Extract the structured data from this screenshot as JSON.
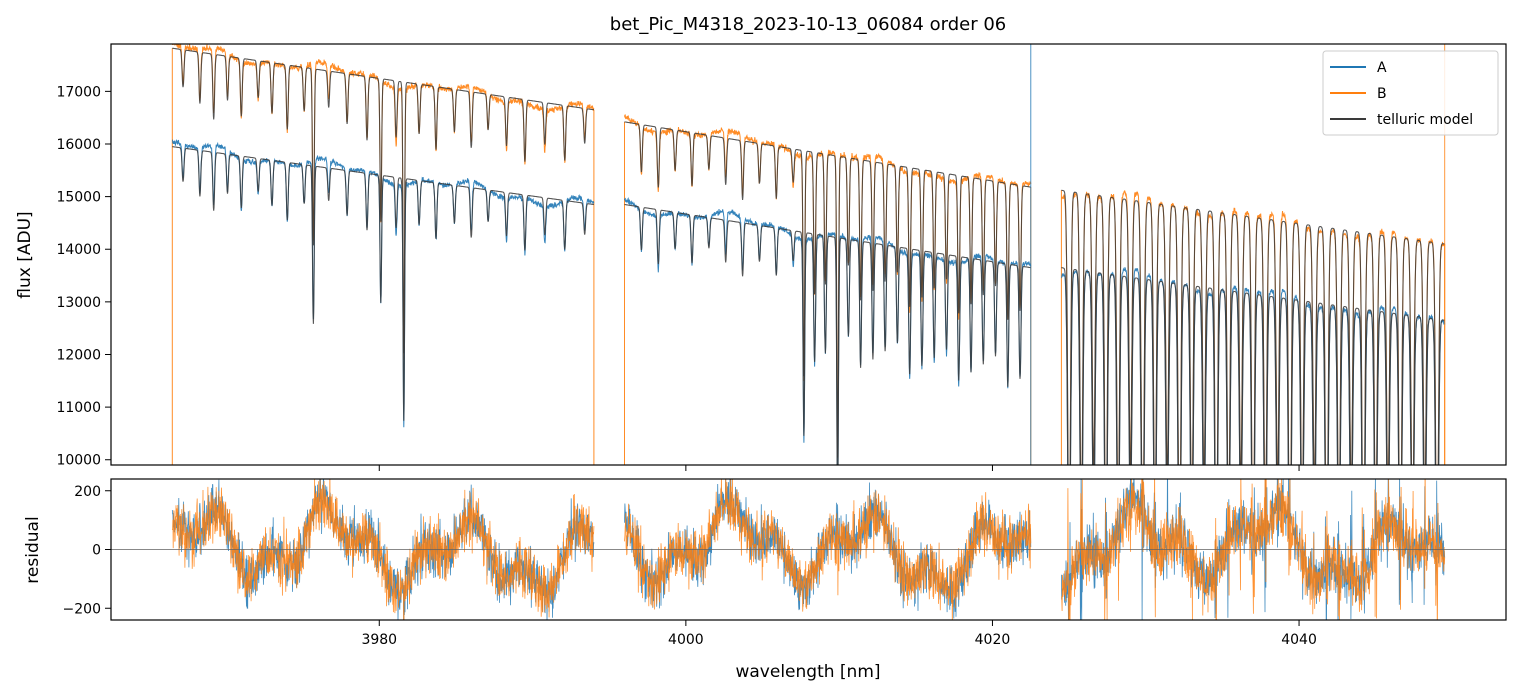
{
  "title": "bet_Pic_M4318_2023-10-13_06084  order 06",
  "colors": {
    "A": "#1f77b4",
    "B": "#ff7f0e",
    "model": "#3a3a3a",
    "zero": "#606060"
  },
  "chart_data": [
    {
      "type": "line",
      "panel": "top",
      "title": "bet_Pic_M4318_2023-10-13_06084  order 06",
      "xlabel": "",
      "ylabel": "flux [ADU]",
      "xlim": [
        3962.5,
        4053.5
      ],
      "ylim": [
        9900,
        17900
      ],
      "yticks": [
        10000,
        11000,
        12000,
        13000,
        14000,
        15000,
        16000,
        17000
      ],
      "ytick_labels": [
        "10000",
        "11000",
        "12000",
        "13000",
        "14000",
        "15000",
        "16000",
        "17000"
      ],
      "grid": false,
      "legend": {
        "placement": "top-right",
        "entries": [
          "A",
          "B",
          "telluric model"
        ]
      },
      "annotations": [
        {
          "type": "vline",
          "x": 4022.5,
          "series": "A"
        },
        {
          "type": "vline",
          "x": 4049.5,
          "series": "B"
        }
      ],
      "segments": [
        {
          "x": [
            3966.5,
            3994.0
          ],
          "A_start": 15950,
          "A_end": 14850,
          "B_start": 17820,
          "B_end": 16650
        },
        {
          "x": [
            3996.0,
            4022.5
          ],
          "A_start": 14850,
          "A_end": 13650,
          "B_start": 16420,
          "B_end": 15180
        },
        {
          "x": [
            4024.5,
            4049.5
          ],
          "A_start": 13650,
          "A_end": 12650,
          "B_start": 15120,
          "B_end": 14100
        }
      ],
      "series": [
        {
          "name": "A",
          "color": "#1f77b4",
          "absorption_lines_nm": [
            3967.2,
            3968.3,
            3969.2,
            3970.1,
            3971.0,
            3972.1,
            3973.0,
            3974.0,
            3975.1,
            3975.7,
            3976.7,
            3977.9,
            3979.2,
            3980.1,
            3981.1,
            3981.6,
            3982.6,
            3983.7,
            3984.9,
            3986.0,
            3987.1,
            3988.3,
            3989.5,
            3990.8,
            3992.1,
            3993.4,
            3997.1,
            3998.2,
            3999.3,
            4000.4,
            4001.5,
            4002.6,
            4003.7,
            4004.8,
            4005.9,
            4007.0,
            4007.7,
            4008.4,
            4009.1,
            4009.9,
            4010.6,
            4011.4,
            4012.2,
            4013.0,
            4013.8,
            4014.6,
            4015.4,
            4016.2,
            4017.0,
            4017.8,
            4018.6,
            4019.4,
            4020.2,
            4021.0,
            4021.8,
            4025.0,
            4025.8,
            4026.6,
            4027.4,
            4028.2,
            4029.0,
            4029.8,
            4030.6,
            4031.4,
            4032.2,
            4033.0,
            4033.8,
            4034.6,
            4035.4,
            4036.2,
            4037.0,
            4037.8,
            4038.6,
            4039.4,
            4040.2,
            4041.0,
            4041.8,
            4042.6,
            4043.4,
            4044.2,
            4045.0,
            4045.8,
            4046.6,
            4047.4,
            4048.2,
            4049.0
          ]
        },
        {
          "name": "B",
          "color": "#ff7f0e",
          "absorption_lines_nm": [
            3967.2,
            3968.3,
            3969.2,
            3970.1,
            3971.0,
            3972.1,
            3973.0,
            3974.0,
            3975.1,
            3975.7,
            3976.7,
            3977.9,
            3979.2,
            3980.1,
            3981.1,
            3981.6,
            3982.6,
            3983.7,
            3984.9,
            3986.0,
            3987.1,
            3988.3,
            3989.5,
            3990.8,
            3992.1,
            3993.4,
            3997.1,
            3998.2,
            3999.3,
            4000.4,
            4001.5,
            4002.6,
            4003.7,
            4004.8,
            4005.9,
            4007.0,
            4007.7,
            4008.4,
            4009.1,
            4009.9,
            4010.6,
            4011.4,
            4012.2,
            4013.0,
            4013.8,
            4014.6,
            4015.4,
            4016.2,
            4017.0,
            4017.8,
            4018.6,
            4019.4,
            4020.2,
            4021.0,
            4021.8,
            4025.0,
            4025.8,
            4026.6,
            4027.4,
            4028.2,
            4029.0,
            4029.8,
            4030.6,
            4031.4,
            4032.2,
            4033.0,
            4033.8,
            4034.6,
            4035.4,
            4036.2,
            4037.0,
            4037.8,
            4038.6,
            4039.4,
            4040.2,
            4041.0,
            4041.8,
            4042.6,
            4043.4,
            4044.2,
            4045.0,
            4045.8,
            4046.6,
            4047.4,
            4048.2,
            4049.0
          ]
        },
        {
          "name": "telluric model",
          "color": "#3a3a3a"
        }
      ]
    },
    {
      "type": "line",
      "panel": "bottom",
      "xlabel": "wavelength [nm]",
      "ylabel": "residual",
      "xlim": [
        3962.5,
        4053.5
      ],
      "ylim": [
        -240,
        240
      ],
      "xticks": [
        3980,
        4000,
        4020,
        4040
      ],
      "xtick_labels": [
        "3980",
        "4000",
        "4020",
        "4040"
      ],
      "yticks": [
        -200,
        0,
        200
      ],
      "ytick_labels": [
        "−200",
        "0",
        "200"
      ],
      "zero_line": 0,
      "series": [
        {
          "name": "A",
          "color": "#1f77b4"
        },
        {
          "name": "B",
          "color": "#ff7f0e"
        }
      ]
    }
  ]
}
